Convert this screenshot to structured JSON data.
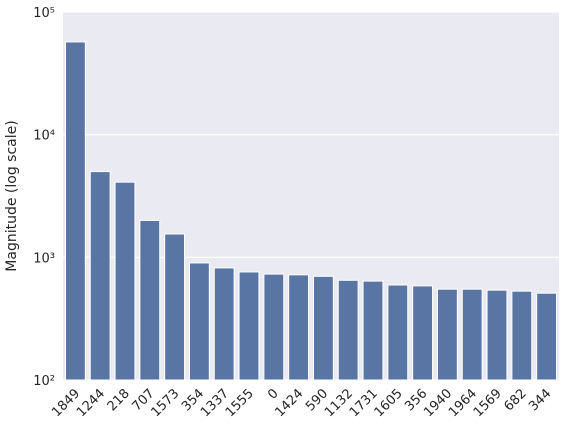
{
  "chart_data": {
    "type": "bar",
    "y_label": "Magnitude (log scale)",
    "categories": [
      "1849",
      "1244",
      "218",
      "707",
      "1573",
      "354",
      "1337",
      "1555",
      "0",
      "1424",
      "590",
      "1132",
      "1731",
      "1605",
      "356",
      "1940",
      "1964",
      "1569",
      "682",
      "344"
    ],
    "values": [
      57000,
      5000,
      4100,
      2000,
      1550,
      900,
      820,
      760,
      730,
      720,
      700,
      650,
      640,
      595,
      585,
      550,
      550,
      540,
      530,
      510
    ],
    "color": "#5975a4",
    "log_scale": true,
    "ylim": [
      100,
      100000
    ],
    "yticks": [
      {
        "value": 100,
        "label": "10²"
      },
      {
        "value": 1000,
        "label": "10³"
      },
      {
        "value": 10000,
        "label": "10⁴"
      },
      {
        "value": 100000,
        "label": "10⁵"
      }
    ],
    "grid": true
  }
}
